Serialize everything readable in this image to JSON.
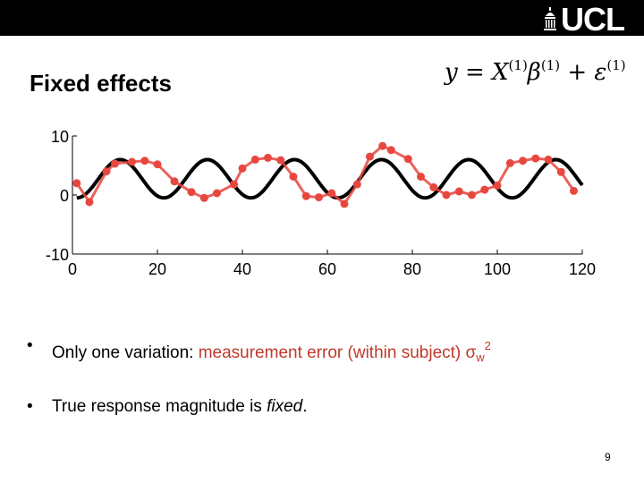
{
  "header": {
    "logo_text": "UCL"
  },
  "slide": {
    "title": "Fixed effects",
    "equation": {
      "lhs": "y",
      "eq": " = ",
      "x": "X",
      "x_sup": "(1)",
      "beta": "β",
      "beta_sup": "(1)",
      "plus": " + ",
      "eps": "ε",
      "eps_sup": "(1)"
    },
    "bullets": [
      {
        "marker": "•",
        "prefix": "Only one variation: ",
        "highlight": "measurement error (within subject) σ",
        "sub": "w",
        "sup": "2"
      },
      {
        "marker": "•",
        "prefix": "True response magnitude is ",
        "emph": "fixed",
        "suffix": "."
      }
    ],
    "page_number": "9"
  },
  "colors": {
    "topbar": "#000000",
    "highlight": "#c0392b",
    "measured": "#e8473f",
    "true_curve": "#000000"
  },
  "chart_data": {
    "type": "line",
    "xlim": [
      0,
      120
    ],
    "ylim": [
      -10,
      10
    ],
    "x_ticks": [
      "0",
      "20",
      "40",
      "60",
      "80",
      "100",
      "120"
    ],
    "y_ticks": [
      "10",
      "0",
      "-10"
    ],
    "series": [
      {
        "kind": "true-response",
        "amplitude": 6.5,
        "period": 20.5,
        "x_start": 1,
        "x_end": 120
      },
      {
        "kind": "measured",
        "x": [
          1,
          4,
          8,
          10,
          14,
          17,
          20,
          24,
          28,
          31,
          34,
          38,
          40,
          43,
          46,
          49,
          52,
          55,
          58,
          61,
          64,
          67,
          70,
          73,
          75,
          79,
          82,
          85,
          88,
          91,
          94,
          97,
          100,
          103,
          106,
          109,
          112,
          115,
          118
        ],
        "y": [
          2,
          -1.2,
          4,
          5.3,
          5.6,
          5.8,
          5.2,
          2.3,
          0.5,
          -0.5,
          0.3,
          1.8,
          4.5,
          6,
          6.3,
          5.9,
          3.1,
          -0.2,
          -0.4,
          0.3,
          -1.5,
          1.8,
          6.5,
          8.3,
          7.6,
          6.1,
          3.1,
          1.3,
          0,
          0.6,
          0,
          0.9,
          1.6,
          5.4,
          5.8,
          6.2,
          6,
          3.9,
          0.7
        ]
      }
    ]
  }
}
